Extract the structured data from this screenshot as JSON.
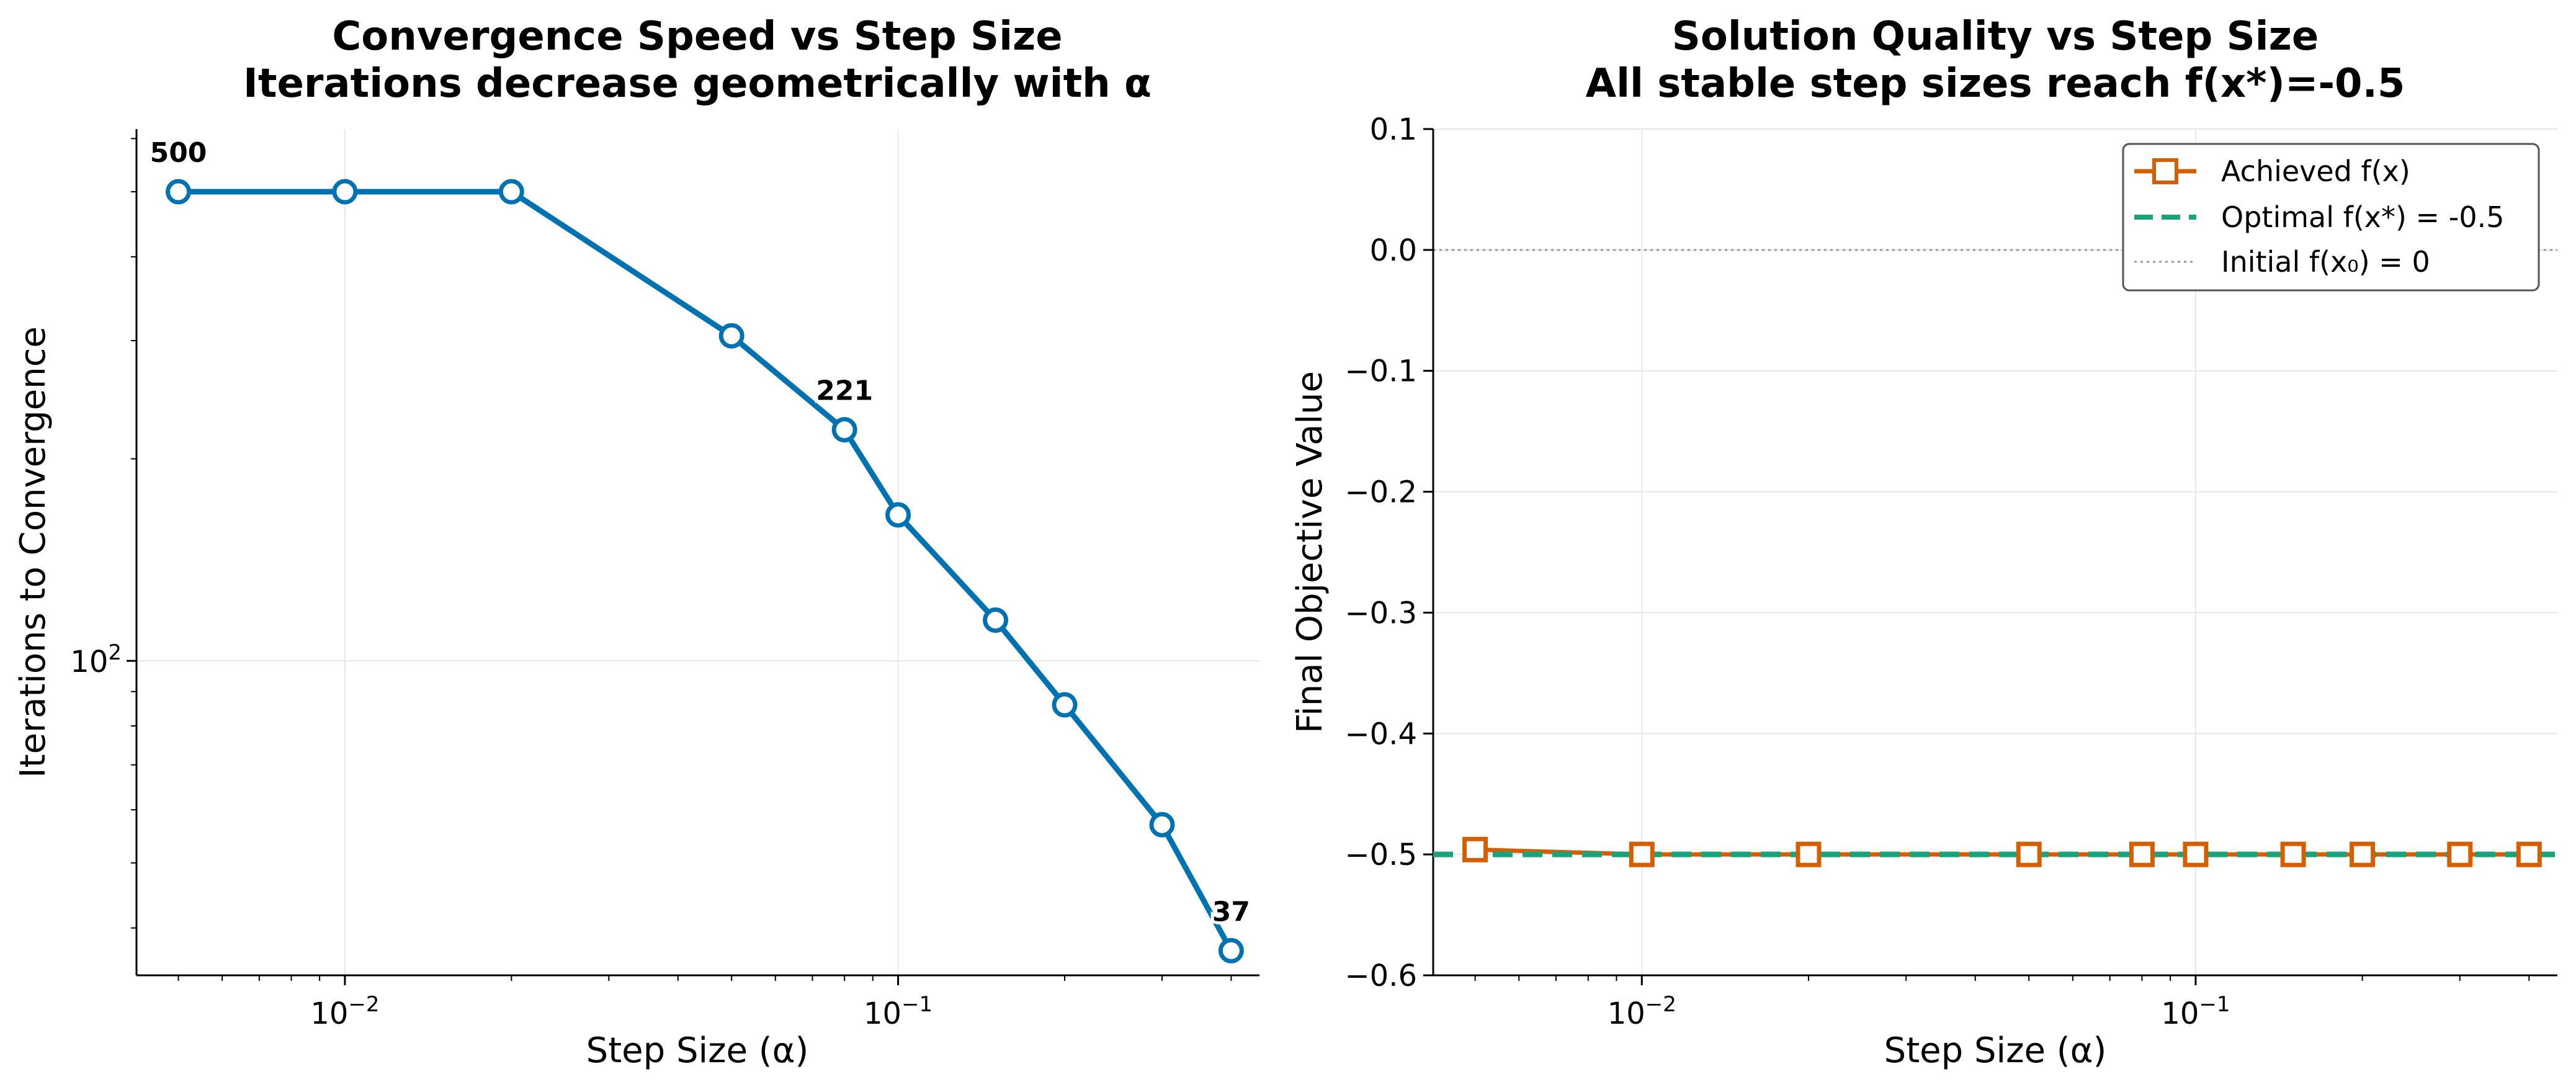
{
  "chart_data": [
    {
      "type": "line",
      "title_line1": "Convergence Speed vs Step Size",
      "title_line2": "Iterations decrease geometrically with α",
      "xlabel": "Step Size (α)",
      "ylabel": "Iterations to Convergence",
      "xscale": "log",
      "yscale": "log",
      "xlim": [
        0.0042,
        0.45
      ],
      "ylim": [
        34,
        620
      ],
      "x_ticks": [
        {
          "value": 0.01,
          "base": "10",
          "exp": "−2"
        },
        {
          "value": 0.1,
          "base": "10",
          "exp": "−1"
        }
      ],
      "y_ticks": [
        {
          "value": 100,
          "base": "10",
          "exp": "2"
        }
      ],
      "grid": true,
      "series": [
        {
          "color": "#0072B2",
          "marker": "circle",
          "x": [
            0.005,
            0.01,
            0.02,
            0.05,
            0.08,
            0.1,
            0.15,
            0.2,
            0.3,
            0.4
          ],
          "y": [
            500,
            500,
            500,
            305,
            221,
            165,
            115,
            86,
            57,
            37
          ]
        }
      ],
      "annotations": [
        {
          "text": "500",
          "x": 0.005,
          "y": 500
        },
        {
          "text": "221",
          "x": 0.08,
          "y": 221
        },
        {
          "text": "37",
          "x": 0.4,
          "y": 37
        }
      ]
    },
    {
      "type": "line",
      "title_line1": "Solution Quality vs Step Size",
      "title_line2": "All stable step sizes reach f(x*)=-0.5",
      "xlabel": "Step Size (α)",
      "ylabel": "Final Objective Value",
      "xscale": "log",
      "yscale": "linear",
      "xlim": [
        0.0042,
        0.45
      ],
      "ylim": [
        -0.6,
        0.1
      ],
      "x_ticks": [
        {
          "value": 0.01,
          "base": "10",
          "exp": "−2"
        },
        {
          "value": 0.1,
          "base": "10",
          "exp": "−1"
        }
      ],
      "y_ticks": [
        {
          "value": 0.1,
          "label": "0.1"
        },
        {
          "value": 0.0,
          "label": "0.0"
        },
        {
          "value": -0.1,
          "label": "−0.1"
        },
        {
          "value": -0.2,
          "label": "−0.2"
        },
        {
          "value": -0.3,
          "label": "−0.3"
        },
        {
          "value": -0.4,
          "label": "−0.4"
        },
        {
          "value": -0.5,
          "label": "−0.5"
        },
        {
          "value": -0.6,
          "label": "−0.6"
        }
      ],
      "grid": true,
      "legend_position": "top-right",
      "series": [
        {
          "name": "Achieved f(x)",
          "color": "#D55E00",
          "marker": "square",
          "x": [
            0.005,
            0.01,
            0.02,
            0.05,
            0.08,
            0.1,
            0.15,
            0.2,
            0.3,
            0.4
          ],
          "y": [
            -0.496,
            -0.5,
            -0.5,
            -0.5,
            -0.5,
            -0.5,
            -0.5,
            -0.5,
            -0.5,
            -0.5
          ]
        }
      ],
      "reference_lines": [
        {
          "name": "Optimal f(x*) = -0.5",
          "y": -0.5,
          "color": "#1AA37A",
          "style": "dashed"
        },
        {
          "name": "Initial f(x₀) = 0",
          "y": 0.0,
          "color": "#999999",
          "style": "dotted"
        }
      ]
    }
  ]
}
